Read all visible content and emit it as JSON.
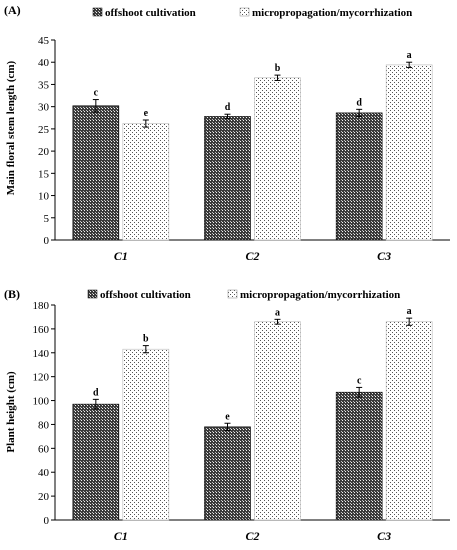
{
  "chart_data": [
    {
      "type": "bar",
      "panel_label": "(A)",
      "ylabel": "Main floral stem length (cm)",
      "xlabel": "",
      "categories": [
        "C1",
        "C2",
        "C3"
      ],
      "ylim": [
        0,
        45
      ],
      "yticks": [
        "0",
        "5",
        "10",
        "15",
        "20",
        "25",
        "30",
        "35",
        "40",
        "45"
      ],
      "legend_position": "top",
      "series": [
        {
          "name": "offshoot cultivation",
          "pattern": "dark-crosshatch",
          "values": [
            30.2,
            27.8,
            28.6
          ],
          "errors": [
            1.4,
            0.5,
            0.8
          ],
          "letters": [
            "c",
            "d",
            "d"
          ]
        },
        {
          "name": "micropropagation/mycorrhization",
          "pattern": "light-dots",
          "values": [
            26.2,
            36.5,
            39.4
          ],
          "errors": [
            0.8,
            0.6,
            0.6
          ],
          "letters": [
            "e",
            "b",
            "a"
          ]
        }
      ]
    },
    {
      "type": "bar",
      "panel_label": "(B)",
      "ylabel": "Plant height (cm)",
      "xlabel": "",
      "categories": [
        "C1",
        "C2",
        "C3"
      ],
      "ylim": [
        0,
        180
      ],
      "yticks": [
        "0",
        "20",
        "40",
        "60",
        "80",
        "100",
        "120",
        "140",
        "160",
        "180"
      ],
      "legend_position": "top",
      "series": [
        {
          "name": "offshoot cultivation",
          "pattern": "dark-crosshatch",
          "values": [
            97,
            78,
            107
          ],
          "errors": [
            4,
            3,
            4
          ],
          "letters": [
            "d",
            "e",
            "c"
          ]
        },
        {
          "name": "micropropagation/mycorrhization",
          "pattern": "light-dots",
          "values": [
            143,
            166,
            166
          ],
          "errors": [
            3,
            2,
            3
          ],
          "letters": [
            "b",
            "a",
            "a"
          ]
        }
      ]
    }
  ]
}
